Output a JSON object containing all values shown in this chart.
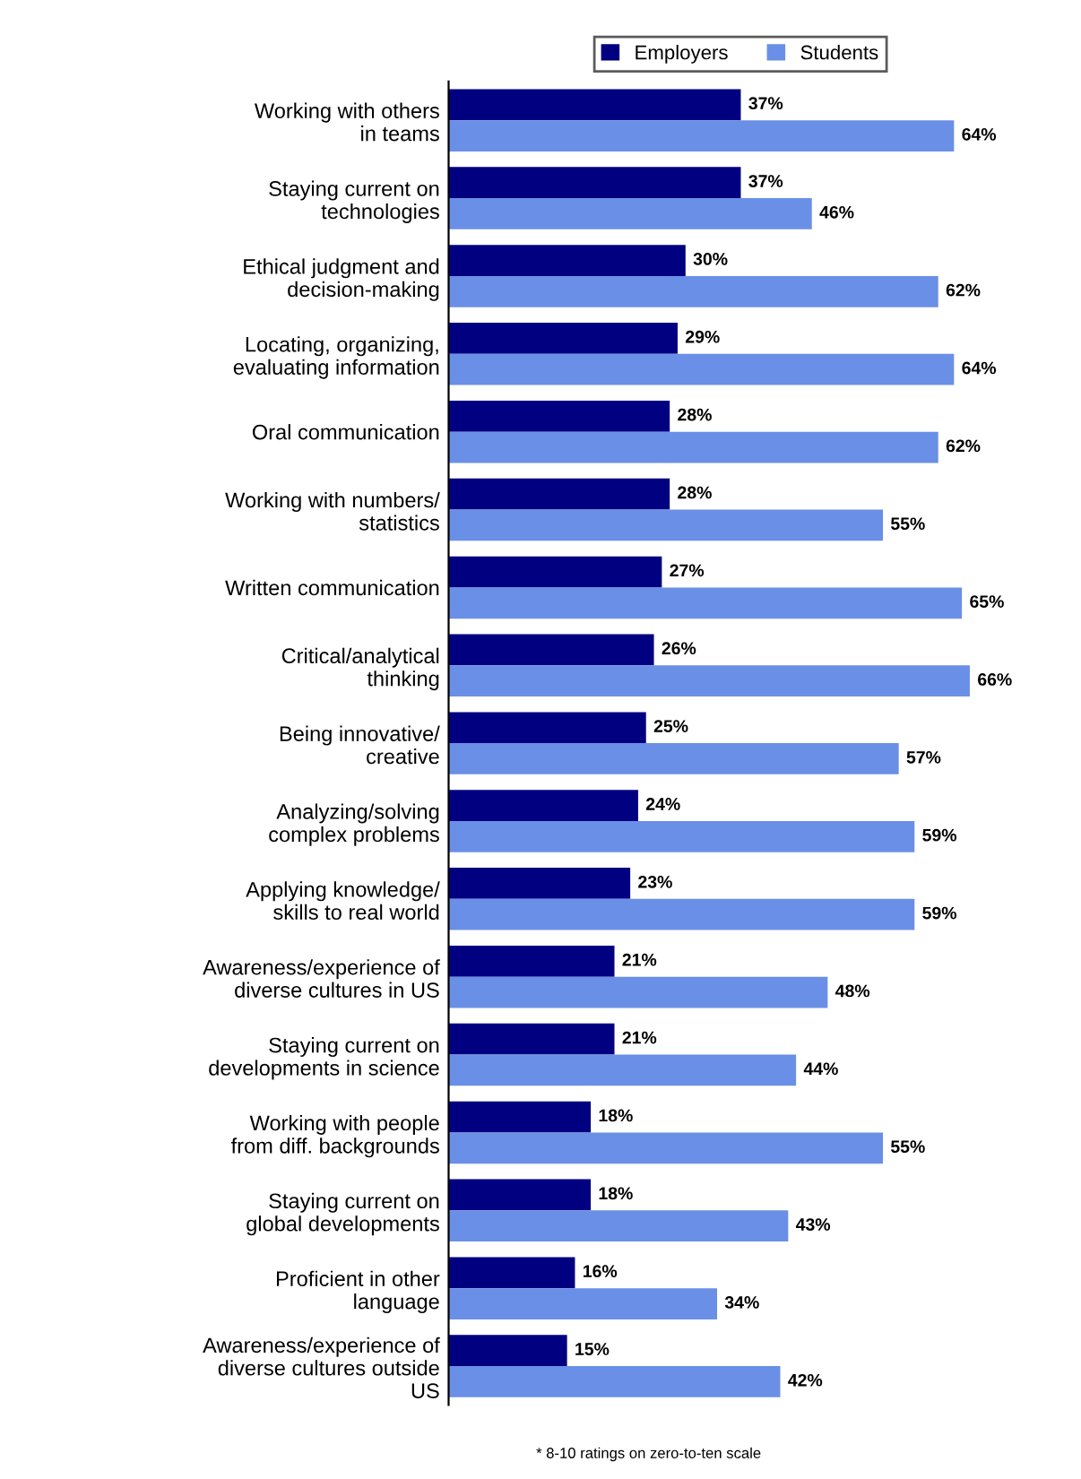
{
  "chart_data": {
    "type": "bar",
    "orientation": "horizontal",
    "categories": [
      "Working with others\nin teams",
      "Staying current on\ntechnologies",
      "Ethical judgment and\ndecision-making",
      "Locating, organizing,\nevaluating information",
      "Oral communication",
      "Working with numbers/\nstatistics",
      "Written communication",
      "Critical/analytical\nthinking",
      "Being innovative/\ncreative",
      "Analyzing/solving\ncomplex problems",
      "Applying knowledge/\nskills to real world",
      "Awareness/experience of\ndiverse cultures in US",
      "Staying current on\ndevelopments in science",
      "Working with people\nfrom diff. backgrounds",
      "Staying current on\nglobal developments",
      "Proficient in other\nlanguage",
      "Awareness/experience of\ndiverse cultures outside\nUS"
    ],
    "series": [
      {
        "name": "Employers",
        "color": "#000080",
        "values": [
          37,
          37,
          30,
          29,
          28,
          28,
          27,
          26,
          25,
          24,
          23,
          21,
          21,
          18,
          18,
          16,
          15
        ],
        "value_labels": [
          "37%",
          "37%",
          "30%",
          "29%",
          "28%",
          "28%",
          "27%",
          "26%",
          "25%",
          "24%",
          "23%",
          "21%",
          "21%",
          "18%",
          "18%",
          "16%",
          "15%"
        ]
      },
      {
        "name": "Students",
        "color": "#6a8fe6",
        "values": [
          64,
          46,
          62,
          64,
          62,
          55,
          65,
          66,
          57,
          59,
          59,
          48,
          44,
          55,
          43,
          34,
          42
        ],
        "value_labels": [
          "64%",
          "46%",
          "62%",
          "64%",
          "62%",
          "55%",
          "65%",
          "66%",
          "57%",
          "59%",
          "59%",
          "48%",
          "44%",
          "55%",
          "43%",
          "34%",
          "42%"
        ]
      }
    ],
    "tick_labels": "y",
    "grid": false,
    "legend": "top",
    "annotations": [
      "* 8-10 ratings on zero-to-ten scale"
    ]
  }
}
